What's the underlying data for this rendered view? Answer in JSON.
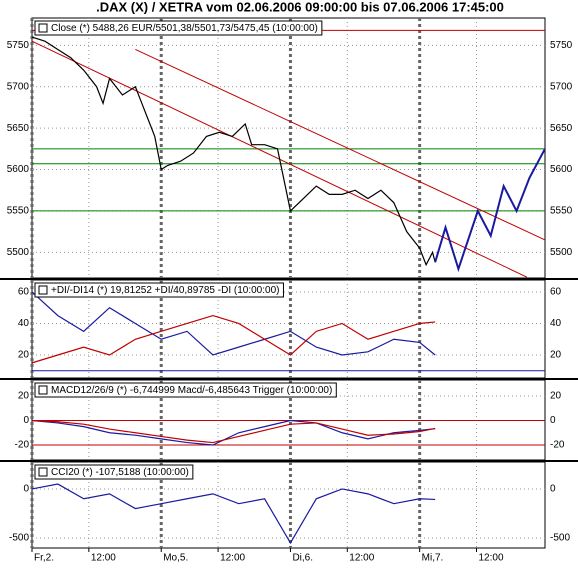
{
  "title": ".DAX (X) / XETRA vom 02.06.2006 09:00:00 bis 07.06.2006 17:45:00",
  "chart_data": [
    {
      "type": "line",
      "legend": "Close (*) 5488,26 EUR/5501,38/5501,73/5475,45 (10:00:00)",
      "ylim": [
        5469,
        5783
      ],
      "yticks": [
        5500,
        5550,
        5600,
        5650,
        5700,
        5750
      ],
      "x": [
        0,
        0.1,
        0.2,
        0.3,
        0.4,
        0.5,
        0.55,
        0.6,
        0.7,
        0.8,
        0.85,
        0.9,
        0.95,
        1.0,
        1.05,
        1.15,
        1.25,
        1.35,
        1.45,
        1.55,
        1.65,
        1.7,
        1.8,
        1.9,
        2.0,
        2.1,
        2.2,
        2.3,
        2.4,
        2.5,
        2.6,
        2.7,
        2.8,
        2.9,
        3.0,
        3.05,
        3.1,
        3.12
      ],
      "series": [
        {
          "color": "#000000",
          "values": [
            5760,
            5755,
            5745,
            5735,
            5720,
            5700,
            5680,
            5710,
            5690,
            5700,
            5680,
            5660,
            5640,
            5600,
            5605,
            5610,
            5620,
            5640,
            5645,
            5640,
            5655,
            5630,
            5630,
            5625,
            5550,
            5565,
            5580,
            5570,
            5570,
            5575,
            5565,
            5575,
            5560,
            5525,
            5505,
            5485,
            5500,
            5488
          ]
        },
        {
          "color": "#1a1aa0",
          "x": [
            3.12,
            3.2,
            3.3,
            3.45,
            3.55,
            3.65,
            3.75,
            3.85,
            3.97
          ],
          "values": [
            5488,
            5530,
            5480,
            5550,
            5520,
            5580,
            5550,
            5590,
            5625
          ]
        }
      ],
      "hlines": [
        {
          "value": 5768,
          "color": "#c00000"
        },
        {
          "value": 5625,
          "color": "#008000"
        },
        {
          "value": 5607,
          "color": "#008000"
        },
        {
          "value": 5550,
          "color": "#008000"
        }
      ],
      "trendlines": [
        {
          "x": [
            0,
            3.83
          ],
          "values": [
            5755,
            5470
          ],
          "color": "#c00000"
        },
        {
          "x": [
            0.8,
            3.97
          ],
          "values": [
            5745,
            5515
          ],
          "color": "#c00000"
        }
      ]
    },
    {
      "type": "line",
      "legend": "+DI/-DI14 (*) 19,81252 +DI/40,89785 -DI (10:00:00)",
      "ylim": [
        5.4,
        67.6
      ],
      "yticks": [
        20,
        40,
        60
      ],
      "x": [
        0,
        0.2,
        0.4,
        0.6,
        0.8,
        1.0,
        1.2,
        1.4,
        1.6,
        1.8,
        2.0,
        2.2,
        2.4,
        2.6,
        2.8,
        3.0,
        3.12
      ],
      "series": [
        {
          "color": "#1a1aa0",
          "values": [
            60,
            45,
            35,
            50,
            40,
            30,
            35,
            20,
            25,
            30,
            35,
            25,
            20,
            22,
            30,
            28,
            20
          ]
        },
        {
          "color": "#c00000",
          "values": [
            15,
            20,
            25,
            20,
            30,
            35,
            40,
            45,
            40,
            30,
            20,
            35,
            40,
            30,
            35,
            40,
            41
          ]
        }
      ],
      "hlines": [
        {
          "value": 10,
          "color": "#1a1aa0"
        }
      ]
    },
    {
      "type": "line",
      "legend": "MACD12/26/9 (*) -6,744999 Macd/-6,485643 Trigger (10:00:00)",
      "ylim": [
        -32.2,
        33
      ],
      "yticks": [
        -20,
        0,
        20
      ],
      "x": [
        0,
        0.2,
        0.4,
        0.6,
        0.8,
        1.0,
        1.2,
        1.4,
        1.6,
        1.8,
        2.0,
        2.2,
        2.4,
        2.6,
        2.8,
        3.0,
        3.12
      ],
      "series": [
        {
          "color": "#1a1aa0",
          "values": [
            0,
            -2,
            -5,
            -10,
            -12,
            -15,
            -18,
            -20,
            -10,
            -5,
            0,
            -2,
            -10,
            -15,
            -10,
            -8,
            -6.7
          ]
        },
        {
          "color": "#c00000",
          "values": [
            0,
            -1,
            -3,
            -7,
            -10,
            -13,
            -16,
            -18,
            -13,
            -8,
            -3,
            -2,
            -7,
            -12,
            -11,
            -9,
            -6.5
          ]
        }
      ],
      "hlines": [
        {
          "value": 0,
          "color": "#c00000"
        },
        {
          "value": -20,
          "color": "#c00000"
        }
      ]
    },
    {
      "type": "line",
      "legend": "CCI20 (*) -107,5188 (10:00:00)",
      "ylim": [
        -602,
        275
      ],
      "yticks": [
        -500,
        0
      ],
      "x": [
        0,
        0.2,
        0.4,
        0.6,
        0.8,
        1.0,
        1.2,
        1.4,
        1.6,
        1.8,
        2.0,
        2.2,
        2.4,
        2.6,
        2.8,
        3.0,
        3.12
      ],
      "series": [
        {
          "color": "#1a1aa0",
          "values": [
            0,
            50,
            -100,
            -50,
            -200,
            -150,
            -100,
            -50,
            -150,
            -100,
            -550,
            -100,
            0,
            -50,
            -150,
            -100,
            -107
          ]
        }
      ],
      "xlim": [
        0,
        3.97
      ],
      "xticks": [
        {
          "value": 0,
          "label": "Fr,2."
        },
        {
          "value": 0.44,
          "label": "12:00"
        },
        {
          "value": 1,
          "label": "Mo,5."
        },
        {
          "value": 1.44,
          "label": "12:00"
        },
        {
          "value": 2,
          "label": "Di,6."
        },
        {
          "value": 2.44,
          "label": "12:00"
        },
        {
          "value": 3,
          "label": "Mi,7."
        },
        {
          "value": 3.44,
          "label": "12:00"
        }
      ]
    }
  ]
}
